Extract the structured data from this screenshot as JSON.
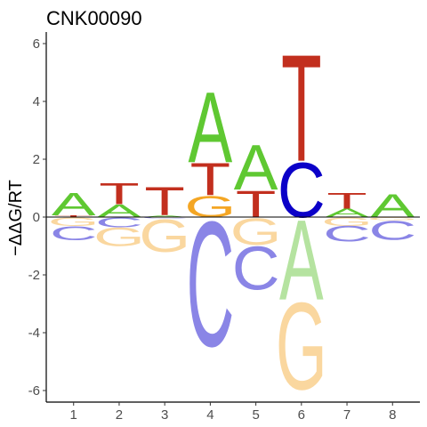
{
  "chart_data": {
    "type": "sequence-logo",
    "title": "CNK00090",
    "xlabel": "",
    "ylabel": "−ΔΔG/RT",
    "positions": [
      1,
      2,
      3,
      4,
      5,
      6,
      7,
      8
    ],
    "ylim": [
      -6.4,
      6.4
    ],
    "yticks": [
      -6,
      -4,
      -2,
      0,
      2,
      4,
      6
    ],
    "grid": false,
    "legend": "none",
    "colors": {
      "A": "#5fc832",
      "C": "#0b00c8",
      "G": "#f4a624",
      "T": "#c22f1e",
      "A_neg": "#b5e3a0",
      "C_neg": "#8a85e6",
      "G_neg": "#fad79f",
      "T_neg": "#e09a92"
    },
    "columns": [
      {
        "position": 1,
        "positive": [
          {
            "base": "T",
            "value": 0.06
          },
          {
            "base": "A",
            "value": 0.8
          }
        ],
        "negative": [
          {
            "base": "G",
            "value": -0.3
          },
          {
            "base": "C",
            "value": -0.5
          }
        ]
      },
      {
        "position": 2,
        "positive": [
          {
            "base": "A",
            "value": 0.45
          },
          {
            "base": "T",
            "value": 0.75
          }
        ],
        "negative": [
          {
            "base": "C",
            "value": -0.35
          },
          {
            "base": "G",
            "value": -0.65
          }
        ]
      },
      {
        "position": 3,
        "positive": [
          {
            "base": "A",
            "value": 0.06
          },
          {
            "base": "T",
            "value": 1.0
          }
        ],
        "negative": [
          {
            "base": "C",
            "value": -0.05
          },
          {
            "base": "G",
            "value": -1.15
          }
        ]
      },
      {
        "position": 4,
        "positive": [
          {
            "base": "G",
            "value": 0.75
          },
          {
            "base": "T",
            "value": 1.15
          },
          {
            "base": "A",
            "value": 2.5
          }
        ],
        "negative": [
          {
            "base": "C",
            "value": -4.45
          }
        ]
      },
      {
        "position": 5,
        "positive": [
          {
            "base": "T",
            "value": 0.95
          },
          {
            "base": "A",
            "value": 1.6
          }
        ],
        "negative": [
          {
            "base": "G",
            "value": -0.95
          },
          {
            "base": "C",
            "value": -1.55
          }
        ]
      },
      {
        "position": 6,
        "positive": [
          {
            "base": "C",
            "value": 1.95
          },
          {
            "base": "T",
            "value": 3.8
          }
        ],
        "negative": [
          {
            "base": "A",
            "value": -2.85
          },
          {
            "base": "G",
            "value": -3.1
          }
        ]
      },
      {
        "position": 7,
        "positive": [
          {
            "base": "A",
            "value": 0.3
          },
          {
            "base": "T",
            "value": 0.55
          }
        ],
        "negative": [
          {
            "base": "G",
            "value": -0.3
          },
          {
            "base": "C",
            "value": -0.55
          }
        ]
      },
      {
        "position": 8,
        "positive": [
          {
            "base": "A",
            "value": 0.82
          }
        ],
        "negative": [
          {
            "base": "G",
            "value": -0.1
          },
          {
            "base": "C",
            "value": -0.68
          }
        ]
      }
    ]
  }
}
